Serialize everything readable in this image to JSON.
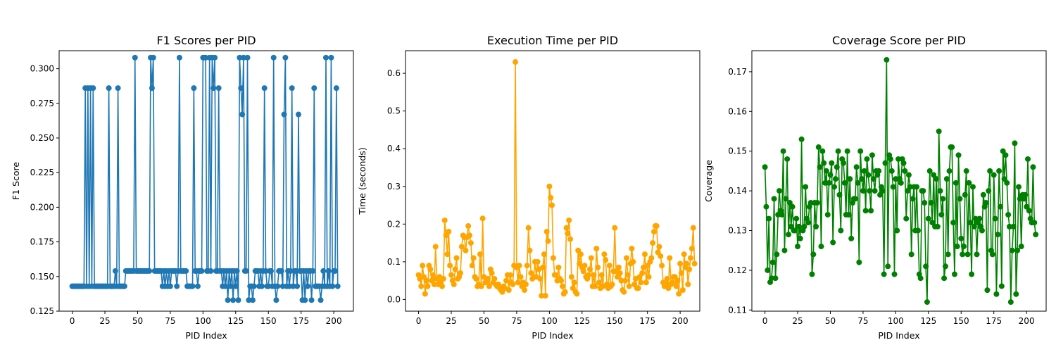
{
  "chart_data": [
    {
      "type": "line",
      "title": "F1 Scores per PID",
      "xlabel": "PID Index",
      "ylabel": "F1 Score",
      "color": "#1f77b4",
      "marker": "circle",
      "xlim": [
        -10,
        215
      ],
      "ylim": [
        0.125,
        0.313
      ],
      "xticks": [
        0,
        25,
        50,
        75,
        100,
        125,
        150,
        175,
        200
      ],
      "yticks": [
        0.125,
        0.15,
        0.175,
        0.2,
        0.225,
        0.25,
        0.275,
        0.3
      ],
      "ytick_labels": [
        "0.125",
        "0.150",
        "0.175",
        "0.200",
        "0.225",
        "0.250",
        "0.275",
        "0.300"
      ],
      "grid": false,
      "x_start": 0,
      "values": [
        0.143,
        0.143,
        0.143,
        0.143,
        0.143,
        0.143,
        0.143,
        0.143,
        0.143,
        0.143,
        0.286,
        0.143,
        0.286,
        0.143,
        0.286,
        0.143,
        0.286,
        0.143,
        0.143,
        0.143,
        0.143,
        0.143,
        0.143,
        0.143,
        0.143,
        0.143,
        0.143,
        0.143,
        0.286,
        0.143,
        0.143,
        0.143,
        0.143,
        0.154,
        0.143,
        0.286,
        0.143,
        0.143,
        0.143,
        0.143,
        0.143,
        0.154,
        0.154,
        0.154,
        0.154,
        0.154,
        0.154,
        0.154,
        0.308,
        0.154,
        0.154,
        0.154,
        0.154,
        0.154,
        0.154,
        0.154,
        0.154,
        0.154,
        0.154,
        0.154,
        0.308,
        0.286,
        0.308,
        0.154,
        0.154,
        0.154,
        0.154,
        0.154,
        0.154,
        0.143,
        0.154,
        0.143,
        0.154,
        0.143,
        0.154,
        0.143,
        0.154,
        0.154,
        0.154,
        0.154,
        0.143,
        0.154,
        0.308,
        0.154,
        0.154,
        0.154,
        0.154,
        0.154,
        0.143,
        0.143,
        0.143,
        0.143,
        0.143,
        0.286,
        0.154,
        0.154,
        0.143,
        0.154,
        0.154,
        0.154,
        0.308,
        0.308,
        0.308,
        0.154,
        0.154,
        0.308,
        0.154,
        0.308,
        0.286,
        0.308,
        0.154,
        0.154,
        0.286,
        0.154,
        0.154,
        0.143,
        0.154,
        0.143,
        0.154,
        0.133,
        0.154,
        0.143,
        0.154,
        0.133,
        0.154,
        0.143,
        0.154,
        0.133,
        0.308,
        0.286,
        0.267,
        0.308,
        0.154,
        0.154,
        0.308,
        0.133,
        0.143,
        0.143,
        0.133,
        0.143,
        0.154,
        0.154,
        0.154,
        0.143,
        0.154,
        0.143,
        0.154,
        0.286,
        0.154,
        0.143,
        0.143,
        0.154,
        0.154,
        0.143,
        0.308,
        0.143,
        0.133,
        0.143,
        0.154,
        0.154,
        0.154,
        0.143,
        0.267,
        0.308,
        0.143,
        0.154,
        0.143,
        0.154,
        0.286,
        0.143,
        0.154,
        0.154,
        0.143,
        0.267,
        0.154,
        0.154,
        0.133,
        0.154,
        0.133,
        0.154,
        0.143,
        0.154,
        0.154,
        0.133,
        0.154,
        0.286,
        0.143,
        0.143,
        0.143,
        0.143,
        0.133,
        0.143,
        0.154,
        0.143,
        0.308,
        0.143,
        0.154,
        0.143,
        0.308,
        0.143,
        0.154,
        0.154,
        0.286,
        0.143
      ]
    },
    {
      "type": "line",
      "title": "Execution Time per PID",
      "xlabel": "PID Index",
      "ylabel": "Time (seconds)",
      "color": "#ffa500",
      "marker": "circle",
      "xlim": [
        -10,
        215
      ],
      "ylim": [
        -0.031,
        0.66
      ],
      "xticks": [
        0,
        25,
        50,
        75,
        100,
        125,
        150,
        175,
        200
      ],
      "yticks": [
        0.0,
        0.1,
        0.2,
        0.3,
        0.4,
        0.5,
        0.6
      ],
      "ytick_labels": [
        "0.0",
        "0.1",
        "0.2",
        "0.3",
        "0.4",
        "0.5",
        "0.6"
      ],
      "grid": false,
      "x_start": 0,
      "values": [
        0.065,
        0.055,
        0.035,
        0.09,
        0.06,
        0.015,
        0.05,
        0.035,
        0.09,
        0.08,
        0.05,
        0.065,
        0.04,
        0.14,
        0.055,
        0.04,
        0.06,
        0.045,
        0.035,
        0.055,
        0.21,
        0.17,
        0.12,
        0.18,
        0.09,
        0.065,
        0.05,
        0.04,
        0.08,
        0.11,
        0.055,
        0.06,
        0.07,
        0.14,
        0.17,
        0.165,
        0.13,
        0.165,
        0.195,
        0.17,
        0.15,
        0.09,
        0.11,
        0.06,
        0.055,
        0.035,
        0.04,
        0.12,
        0.035,
        0.215,
        0.06,
        0.045,
        0.05,
        0.055,
        0.035,
        0.08,
        0.07,
        0.045,
        0.055,
        0.04,
        0.035,
        0.04,
        0.03,
        0.025,
        0.02,
        0.035,
        0.03,
        0.05,
        0.065,
        0.025,
        0.065,
        0.045,
        0.04,
        0.09,
        0.63,
        0.085,
        0.045,
        0.09,
        0.06,
        0.035,
        0.045,
        0.025,
        0.04,
        0.09,
        0.19,
        0.13,
        0.07,
        0.055,
        0.06,
        0.1,
        0.06,
        0.1,
        0.08,
        0.055,
        0.01,
        0.085,
        0.12,
        0.01,
        0.18,
        0.155,
        0.3,
        0.27,
        0.25,
        0.11,
        0.065,
        0.065,
        0.05,
        0.085,
        0.055,
        0.05,
        0.035,
        0.015,
        0.02,
        0.19,
        0.175,
        0.21,
        0.16,
        0.06,
        0.03,
        0.045,
        0.02,
        0.015,
        0.13,
        0.095,
        0.12,
        0.085,
        0.075,
        0.09,
        0.06,
        0.055,
        0.065,
        0.08,
        0.11,
        0.035,
        0.065,
        0.035,
        0.135,
        0.085,
        0.045,
        0.03,
        0.065,
        0.035,
        0.12,
        0.105,
        0.04,
        0.03,
        0.09,
        0.035,
        0.04,
        0.075,
        0.19,
        0.075,
        0.06,
        0.085,
        0.07,
        0.05,
        0.025,
        0.02,
        0.05,
        0.11,
        0.065,
        0.035,
        0.095,
        0.135,
        0.1,
        0.04,
        0.055,
        0.03,
        0.03,
        0.06,
        0.045,
        0.07,
        0.085,
        0.12,
        0.045,
        0.09,
        0.06,
        0.1,
        0.11,
        0.15,
        0.18,
        0.195,
        0.195,
        0.125,
        0.14,
        0.115,
        0.09,
        0.045,
        0.035,
        0.04,
        0.055,
        0.03,
        0.11,
        0.04,
        0.045,
        0.06,
        0.06,
        0.035,
        0.05,
        0.015,
        0.095,
        0.07,
        0.025,
        0.12,
        0.085,
        0.095,
        0.04,
        0.08,
        0.11,
        0.135,
        0.19,
        0.095
      ]
    },
    {
      "type": "line",
      "title": "Coverage Score per PID",
      "xlabel": "PID Index",
      "ylabel": "Coverage",
      "color": "#008000",
      "marker": "circle",
      "xlim": [
        -10,
        215
      ],
      "ylim": [
        0.1097,
        0.1753
      ],
      "xticks": [
        0,
        25,
        50,
        75,
        100,
        125,
        150,
        175,
        200
      ],
      "yticks": [
        0.11,
        0.12,
        0.13,
        0.14,
        0.15,
        0.16,
        0.17
      ],
      "ytick_labels": [
        "0.11",
        "0.12",
        "0.13",
        "0.14",
        "0.15",
        "0.16",
        "0.17"
      ],
      "grid": false,
      "x_start": 0,
      "values": [
        0.146,
        0.136,
        0.12,
        0.133,
        0.117,
        0.118,
        0.122,
        0.138,
        0.118,
        0.124,
        0.134,
        0.14,
        0.135,
        0.134,
        0.15,
        0.125,
        0.138,
        0.148,
        0.129,
        0.137,
        0.131,
        0.136,
        0.13,
        0.13,
        0.133,
        0.126,
        0.131,
        0.128,
        0.153,
        0.13,
        0.131,
        0.141,
        0.133,
        0.132,
        0.136,
        0.137,
        0.119,
        0.124,
        0.137,
        0.131,
        0.137,
        0.151,
        0.146,
        0.126,
        0.15,
        0.147,
        0.142,
        0.145,
        0.134,
        0.142,
        0.144,
        0.147,
        0.127,
        0.141,
        0.143,
        0.146,
        0.15,
        0.139,
        0.13,
        0.148,
        0.147,
        0.142,
        0.134,
        0.15,
        0.134,
        0.143,
        0.128,
        0.137,
        0.138,
        0.138,
        0.146,
        0.142,
        0.122,
        0.15,
        0.143,
        0.14,
        0.145,
        0.135,
        0.148,
        0.144,
        0.14,
        0.135,
        0.149,
        0.143,
        0.14,
        0.145,
        0.144,
        0.145,
        0.139,
        0.141,
        0.14,
        0.119,
        0.147,
        0.173,
        0.121,
        0.149,
        0.148,
        0.145,
        0.141,
        0.119,
        0.143,
        0.13,
        0.148,
        0.143,
        0.142,
        0.148,
        0.147,
        0.145,
        0.133,
        0.14,
        0.144,
        0.141,
        0.124,
        0.138,
        0.141,
        0.13,
        0.141,
        0.13,
        0.119,
        0.118,
        0.14,
        0.14,
        0.137,
        0.121,
        0.112,
        0.133,
        0.145,
        0.137,
        0.132,
        0.144,
        0.131,
        0.143,
        0.131,
        0.155,
        0.14,
        0.134,
        0.138,
        0.118,
        0.121,
        0.143,
        0.124,
        0.145,
        0.151,
        0.151,
        0.132,
        0.119,
        0.142,
        0.126,
        0.149,
        0.138,
        0.128,
        0.124,
        0.126,
        0.139,
        0.145,
        0.124,
        0.142,
        0.132,
        0.119,
        0.141,
        0.131,
        0.133,
        0.124,
        0.132,
        0.133,
        0.131,
        0.13,
        0.139,
        0.136,
        0.137,
        0.115,
        0.14,
        0.145,
        0.125,
        0.124,
        0.144,
        0.133,
        0.114,
        0.129,
        0.145,
        0.136,
        0.116,
        0.15,
        0.143,
        0.149,
        0.142,
        0.134,
        0.131,
        0.112,
        0.125,
        0.131,
        0.152,
        0.114,
        0.125,
        0.141,
        0.138,
        0.126,
        0.139,
        0.138,
        0.139,
        0.136,
        0.148,
        0.135,
        0.133,
        0.132,
        0.146,
        0.132,
        0.129
      ]
    }
  ]
}
